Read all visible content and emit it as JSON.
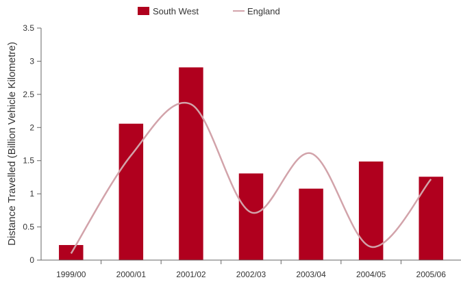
{
  "chart_data": {
    "type": "bar",
    "title": "",
    "xlabel": "",
    "ylabel": "Distance Travelled (Billion Vehicle Kilometre)",
    "categories": [
      "1999/00",
      "2000/01",
      "2001/02",
      "2002/03",
      "2003/04",
      "2004/05",
      "2005/06"
    ],
    "series": [
      {
        "name": "South West",
        "kind": "bar",
        "color": "#b0001e",
        "values": [
          0.23,
          2.06,
          2.91,
          1.31,
          1.08,
          1.49,
          1.26
        ]
      },
      {
        "name": "England",
        "kind": "line",
        "smooth": true,
        "color": "#d2a3aa",
        "values": [
          0.1,
          1.58,
          2.35,
          0.72,
          1.61,
          0.2,
          1.22
        ]
      }
    ],
    "yticks": [
      "0",
      "0.5",
      "1",
      "1.5",
      "2",
      "2.5",
      "3",
      "3.5"
    ],
    "ylim": [
      0,
      3.5
    ],
    "grid": false,
    "legend": "top-center"
  }
}
